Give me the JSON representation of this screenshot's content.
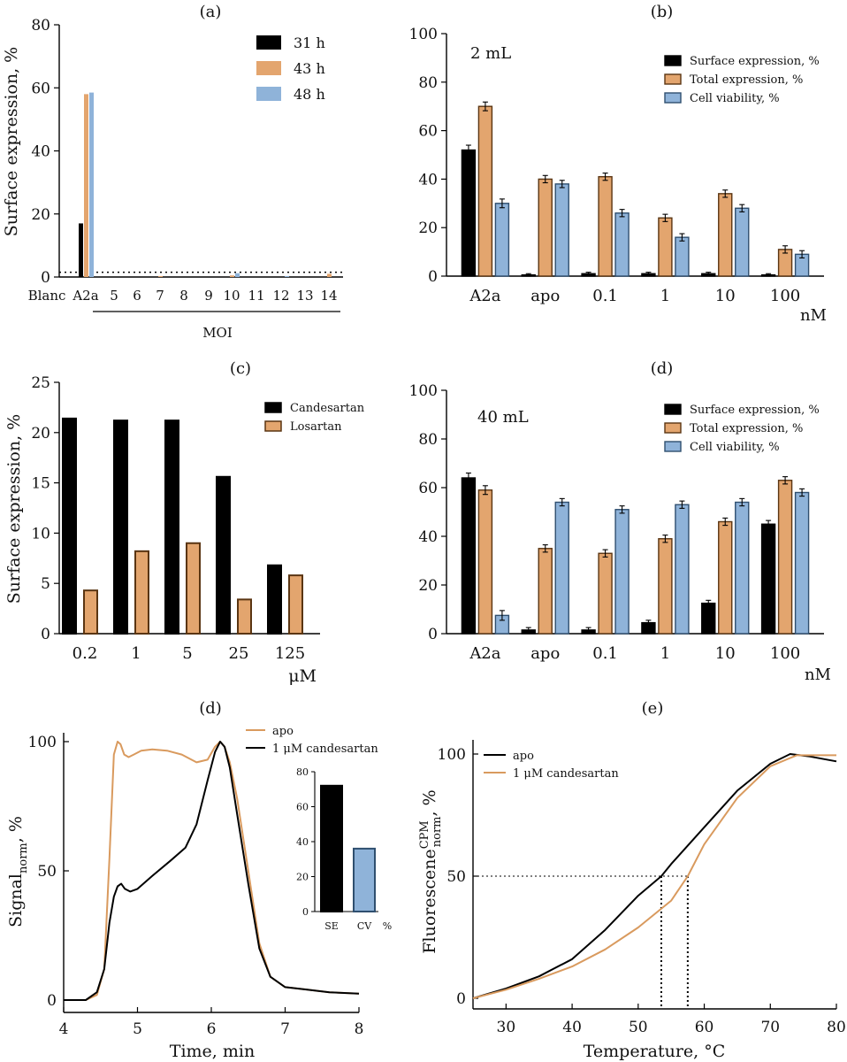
{
  "colors": {
    "black": "#000000",
    "orange": "#e3a56e",
    "blue": "#8fb3d9",
    "blue_dark": "#2f4f6f",
    "orange_dark": "#5a3512",
    "line_orange": "#d99a5e",
    "line_black": "#000000"
  },
  "chart_data": [
    {
      "id": "a",
      "panel_label": "(a)",
      "type": "bar",
      "ylabel": "Surface expression, %",
      "ylim": [
        0,
        80
      ],
      "yticks": [
        "0",
        "20",
        "40",
        "60",
        "80"
      ],
      "categories": [
        "Blanc",
        "A2a",
        "5",
        "6",
        "7",
        "8",
        "9",
        "10",
        "11",
        "12",
        "13",
        "14"
      ],
      "group_label": "MOI",
      "threshold": 1.5,
      "series": [
        {
          "name": "31 h",
          "values": [
            0,
            17,
            0,
            0,
            0,
            0,
            0,
            0,
            0,
            0,
            0,
            0
          ]
        },
        {
          "name": "43 h",
          "values": [
            0,
            58,
            0,
            0,
            0.3,
            0,
            0,
            0.5,
            0,
            0,
            0,
            1.0
          ]
        },
        {
          "name": "48 h",
          "values": [
            0,
            58.5,
            0,
            0,
            0,
            0,
            0,
            1.2,
            0,
            0.3,
            0,
            0
          ]
        }
      ]
    },
    {
      "id": "b",
      "panel_label": "(b)",
      "type": "bar",
      "annotation": "2 mL",
      "ylim": [
        0,
        100
      ],
      "yticks": [
        "0",
        "20",
        "40",
        "60",
        "80",
        "100"
      ],
      "categories": [
        "A2a",
        "apo",
        "0.1",
        "1",
        "10",
        "100"
      ],
      "unit_label": "nM",
      "series": [
        {
          "name": "Surface expression, %",
          "values": [
            52,
            0.5,
            1,
            1,
            1,
            0.5
          ],
          "errors": [
            2,
            0.5,
            0.6,
            0.6,
            0.6,
            0.5
          ]
        },
        {
          "name": "Total expression, %",
          "values": [
            70,
            40,
            41,
            24,
            34,
            11
          ],
          "errors": [
            1.8,
            1.5,
            1.5,
            1.5,
            1.5,
            1.5
          ]
        },
        {
          "name": "Cell viability, %",
          "values": [
            30,
            38,
            26,
            16,
            28,
            9
          ],
          "errors": [
            1.8,
            1.5,
            1.5,
            1.5,
            1.5,
            1.5
          ]
        }
      ]
    },
    {
      "id": "c",
      "panel_label": "(c)",
      "type": "bar",
      "ylabel": "Surface expression, %",
      "ylim": [
        0,
        25
      ],
      "yticks": [
        "0",
        "5",
        "10",
        "15",
        "20",
        "25"
      ],
      "categories": [
        "0.2",
        "1",
        "5",
        "25",
        "125"
      ],
      "unit_label": "μM",
      "series": [
        {
          "name": "Candesartan",
          "values": [
            21.4,
            21.2,
            21.2,
            15.6,
            6.8
          ]
        },
        {
          "name": "Losartan",
          "values": [
            4.3,
            8.2,
            9.0,
            3.4,
            5.8
          ]
        }
      ]
    },
    {
      "id": "d1",
      "panel_label": "(d)",
      "type": "bar",
      "annotation": "40 mL",
      "ylim": [
        0,
        100
      ],
      "yticks": [
        "0",
        "20",
        "40",
        "60",
        "80",
        "100"
      ],
      "categories": [
        "A2a",
        "apo",
        "0.1",
        "1",
        "10",
        "100"
      ],
      "unit_label": "nM",
      "series": [
        {
          "name": "Surface expression, %",
          "values": [
            64,
            1.5,
            1.5,
            4.5,
            12.5,
            45
          ],
          "errors": [
            2,
            1,
            1,
            1,
            1.2,
            1.5
          ]
        },
        {
          "name": "Total expression, %",
          "values": [
            59,
            35,
            33,
            39,
            46,
            63
          ],
          "errors": [
            1.8,
            1.5,
            1.5,
            1.5,
            1.5,
            1.5
          ]
        },
        {
          "name": "Cell viability, %",
          "values": [
            7.5,
            54,
            51,
            53,
            54,
            58
          ],
          "errors": [
            2,
            1.5,
            1.5,
            1.5,
            1.5,
            1.5
          ]
        }
      ]
    },
    {
      "id": "d2",
      "panel_label": "(d)",
      "type": "line",
      "ylabel_main": "Signal",
      "ylabel_sub": "norm",
      "ylabel_suffix": ", %",
      "xlabel": "Time, min",
      "xlim": [
        4,
        8
      ],
      "ylim": [
        0,
        100
      ],
      "xticks": [
        "4",
        "5",
        "6",
        "7",
        "8"
      ],
      "yticks": [
        "0",
        "50",
        "100"
      ],
      "series": [
        {
          "name": "apo",
          "x": [
            4.0,
            4.3,
            4.45,
            4.55,
            4.62,
            4.68,
            4.73,
            4.77,
            4.82,
            4.88,
            4.95,
            5.05,
            5.2,
            5.4,
            5.6,
            5.8,
            5.95,
            6.05,
            6.12,
            6.18,
            6.25,
            6.35,
            6.5,
            6.65,
            6.8,
            7.0,
            7.3,
            7.6,
            8.0
          ],
          "y": [
            0,
            0,
            2,
            12,
            55,
            95,
            100,
            99,
            95,
            94,
            95,
            96.5,
            97,
            96.5,
            95,
            92,
            93,
            98,
            100,
            98,
            92,
            78,
            50,
            22,
            9,
            5,
            4,
            3,
            2.5
          ]
        },
        {
          "name": "1 μM candesartan",
          "x": [
            4.0,
            4.3,
            4.45,
            4.55,
            4.62,
            4.68,
            4.73,
            4.78,
            4.83,
            4.9,
            5.0,
            5.2,
            5.45,
            5.65,
            5.8,
            5.95,
            6.05,
            6.12,
            6.18,
            6.25,
            6.35,
            6.5,
            6.65,
            6.8,
            7.0,
            7.3,
            7.6,
            8.0
          ],
          "y": [
            0,
            0,
            3,
            12,
            30,
            40,
            44,
            45,
            43,
            42,
            43,
            48,
            54,
            59,
            68,
            85,
            96,
            100,
            98,
            90,
            72,
            45,
            20,
            9,
            5,
            4,
            3,
            2.5
          ]
        }
      ],
      "inset": {
        "type": "bar",
        "ylim": [
          0,
          80
        ],
        "yticks": [
          "0",
          "20",
          "40",
          "60",
          "80"
        ],
        "categories": [
          "SE",
          "CV"
        ],
        "unit": "%",
        "values": [
          72,
          36
        ]
      }
    },
    {
      "id": "e",
      "panel_label": "(e)",
      "type": "line",
      "ylabel_main": "Fluorescene",
      "ylabel_sup": "CPM",
      "ylabel_sub": "norm",
      "ylabel_suffix": ", %",
      "xlabel": "Temperature, °C",
      "xlim": [
        25,
        80
      ],
      "ylim": [
        0,
        100
      ],
      "xticks": [
        "30",
        "40",
        "50",
        "60",
        "70",
        "80"
      ],
      "yticks": [
        "0",
        "50",
        "100"
      ],
      "midpoint_level": 50,
      "midpoints": [
        53.5,
        57.5
      ],
      "series": [
        {
          "name": "apo",
          "x": [
            25,
            30,
            35,
            40,
            45,
            50,
            53.5,
            55,
            60,
            65,
            70,
            73,
            76,
            80
          ],
          "y": [
            0,
            4,
            9,
            16,
            28,
            42,
            50,
            55,
            70,
            85,
            96,
            100,
            99,
            97
          ]
        },
        {
          "name": "1 μM candesartan",
          "x": [
            25,
            30,
            35,
            40,
            45,
            50,
            55,
            57.5,
            60,
            65,
            70,
            74,
            80
          ],
          "y": [
            0,
            3.5,
            8,
            13,
            20,
            29,
            40,
            50,
            63,
            82,
            95,
            99.5,
            99.5
          ]
        }
      ]
    }
  ]
}
